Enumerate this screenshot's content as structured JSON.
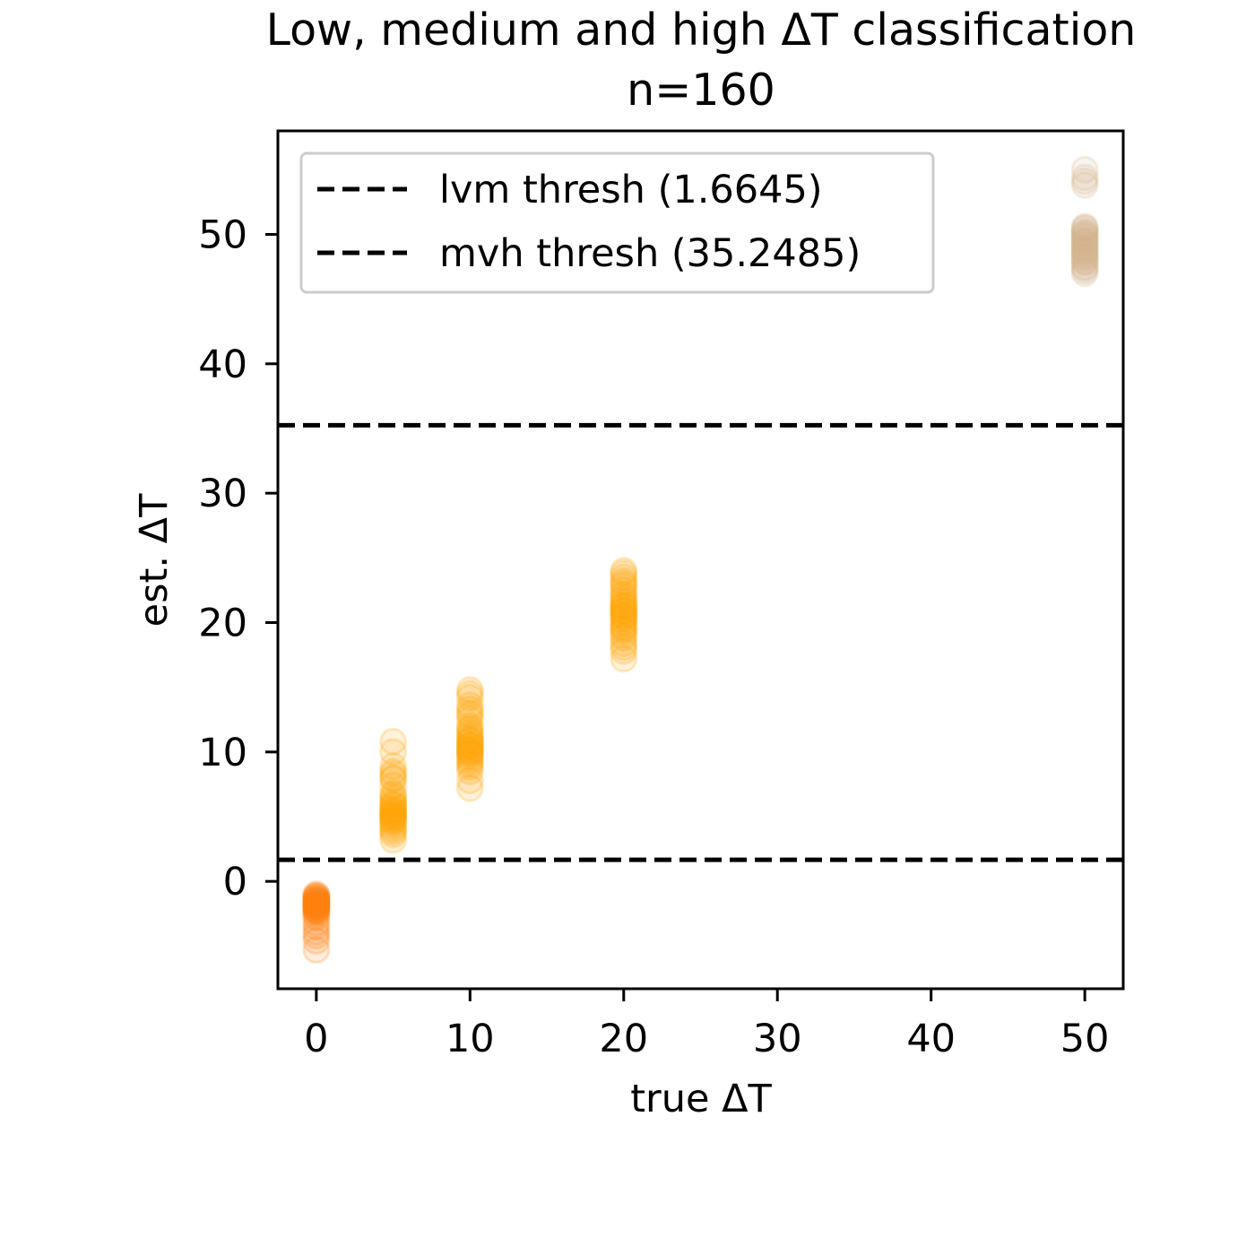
{
  "chart_data": {
    "type": "scatter",
    "title": "Low, medium and high ΔT classification",
    "subtitle": "n=160",
    "xlabel": "true ΔT",
    "ylabel": "est. ΔT",
    "xlim": [
      -2.5,
      52.5
    ],
    "ylim": [
      -8.3,
      58
    ],
    "xticks": [
      0,
      10,
      20,
      30,
      40,
      50
    ],
    "yticks": [
      0,
      10,
      20,
      30,
      40,
      50
    ],
    "grid": false,
    "legend_position": "upper-left",
    "thresholds": [
      {
        "label": "lvm thresh (1.6645)",
        "value": 1.6645,
        "color": "#000000",
        "style": "dashed"
      },
      {
        "label": "mvh thresh (35.2485)",
        "value": 35.2485,
        "color": "#000000",
        "style": "dashed"
      }
    ],
    "groups": [
      {
        "color": "#ff7f0e",
        "x": 0,
        "y": [
          -1.2,
          -1.4,
          -1.6,
          -1.8,
          -2.0,
          -2.2,
          -1.5,
          -1.9,
          -2.4,
          -1.1,
          -1.7,
          -2.1,
          -1.3,
          -2.6,
          -3.2,
          -3.9,
          -4.6,
          -5.3,
          -2.8,
          -1.0,
          -1.6,
          -2.3,
          -1.8,
          -1.4,
          -2.0,
          -1.5,
          -2.2,
          -1.9,
          -1.7,
          -3.5,
          -4.2,
          -1.2
        ]
      },
      {
        "color": "#ffa500",
        "x": 5,
        "y": [
          3.2,
          3.8,
          4.2,
          4.6,
          5.0,
          5.3,
          5.6,
          6.0,
          6.4,
          4.8,
          5.1,
          4.4,
          5.8,
          6.2,
          7.4,
          8.0,
          8.5,
          8.9,
          10.0,
          10.8,
          4.9,
          5.5,
          6.6,
          4.0,
          5.2,
          4.7,
          8.3,
          5.9,
          3.6,
          6.8,
          7.9,
          5.4
        ]
      },
      {
        "color": "#ffa500",
        "x": 10,
        "y": [
          7.2,
          7.8,
          8.5,
          9.0,
          9.4,
          9.8,
          10.2,
          10.5,
          10.8,
          11.2,
          11.6,
          12.0,
          12.5,
          13.0,
          13.6,
          14.2,
          14.8,
          9.6,
          10.0,
          10.4,
          11.0,
          10.6,
          9.2,
          11.4,
          12.8,
          13.3,
          14.5,
          8.8,
          10.9,
          11.8,
          10.1,
          9.9
        ]
      },
      {
        "color": "#ffa500",
        "x": 20,
        "y": [
          17.2,
          17.8,
          18.4,
          19.0,
          19.5,
          20.0,
          20.4,
          20.8,
          21.2,
          21.6,
          22.0,
          22.5,
          23.0,
          23.5,
          24.0,
          19.8,
          20.2,
          21.0,
          21.4,
          18.8,
          22.2,
          23.8,
          20.6,
          19.3,
          21.8,
          18.1,
          20.9,
          22.8,
          19.6,
          21.3,
          20.5,
          23.2
        ]
      },
      {
        "color": "#d2b48c",
        "x": 50,
        "y": [
          47.2,
          47.8,
          48.2,
          48.6,
          49.0,
          49.4,
          49.8,
          50.2,
          50.6,
          48.0,
          48.8,
          49.6,
          50.4,
          47.5,
          48.4,
          49.2,
          50.0,
          53.8,
          54.4,
          55.0,
          47.0,
          48.9,
          49.9,
          50.5,
          47.9,
          48.3,
          49.5,
          50.1,
          54.1,
          48.7,
          49.3,
          47.4
        ]
      }
    ]
  }
}
